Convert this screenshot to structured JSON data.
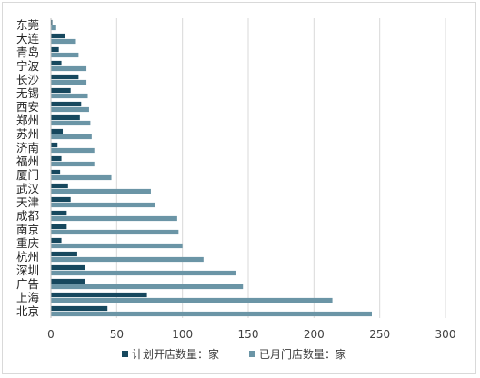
{
  "chart_data": {
    "type": "bar",
    "orientation": "horizontal",
    "categories": [
      "北京",
      "上海",
      "广告",
      "深圳",
      "杭州",
      "重庆",
      "南京",
      "成都",
      "天津",
      "武汉",
      "厦门",
      "福州",
      "济南",
      "苏州",
      "郑州",
      "西安",
      "无锡",
      "长沙",
      "宁波",
      "青岛",
      "大连",
      "东莞"
    ],
    "series": [
      {
        "name": "计划开店数量：家",
        "color": "#17485e",
        "values": [
          43,
          73,
          26,
          26,
          20,
          8,
          12,
          12,
          15,
          13,
          7,
          8,
          5,
          9,
          22,
          23,
          15,
          21,
          8,
          6,
          11,
          1
        ]
      },
      {
        "name": "已月门店数量：家",
        "color": "#6b95a6",
        "values": [
          244,
          214,
          146,
          141,
          116,
          100,
          97,
          96,
          79,
          76,
          46,
          33,
          33,
          31,
          30,
          29,
          28,
          27,
          27,
          21,
          19,
          4
        ]
      }
    ],
    "xlim": [
      0,
      300
    ],
    "xticks": [
      "0",
      "50",
      "100",
      "150",
      "200",
      "250",
      "300"
    ],
    "grid": true,
    "legend_position": "bottom"
  }
}
